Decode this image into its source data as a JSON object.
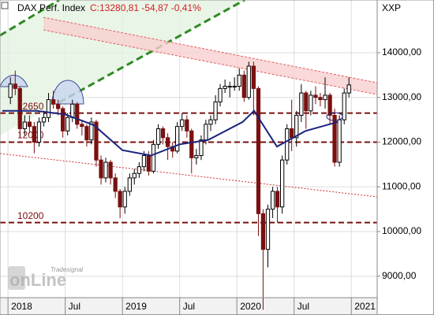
{
  "chart_data": {
    "type": "candlestick",
    "title": "DAX Perf. Index",
    "quote": "C:13280,81 -54,87 -0,41%",
    "axis_title": "XXP",
    "watermark": "Tradesignal",
    "watermark_brand": "onLine",
    "x": [
      2018.021,
      2018.063,
      2018.104,
      2018.146,
      2018.188,
      2018.229,
      2018.271,
      2018.313,
      2018.354,
      2018.396,
      2018.438,
      2018.479,
      2018.521,
      2018.563,
      2018.604,
      2018.646,
      2018.688,
      2018.729,
      2018.771,
      2018.813,
      2018.854,
      2018.896,
      2018.938,
      2018.979,
      2019.021,
      2019.063,
      2019.104,
      2019.146,
      2019.188,
      2019.229,
      2019.271,
      2019.313,
      2019.354,
      2019.396,
      2019.438,
      2019.479,
      2019.521,
      2019.563,
      2019.604,
      2019.646,
      2019.688,
      2019.729,
      2019.771,
      2019.813,
      2019.854,
      2019.896,
      2019.938,
      2019.979,
      2020.021,
      2020.063,
      2020.104,
      2020.146,
      2020.188,
      2020.229,
      2020.271,
      2020.313,
      2020.354,
      2020.396,
      2020.438,
      2020.479,
      2020.521,
      2020.563,
      2020.604,
      2020.646,
      2020.688,
      2020.729,
      2020.771,
      2020.813,
      2020.854,
      2020.896,
      2020.938,
      2020.979
    ],
    "open": [
      13000,
      13300,
      13200,
      12300,
      12450,
      12350,
      12000,
      12450,
      12550,
      12950,
      12850,
      12750,
      12250,
      12550,
      12850,
      12400,
      12350,
      12050,
      12450,
      11600,
      11200,
      11550,
      11200,
      10900,
      10550,
      10900,
      11200,
      11300,
      11450,
      11700,
      11350,
      11950,
      12300,
      12100,
      11900,
      11800,
      12350,
      12500,
      12250,
      11650,
      11700,
      12050,
      12400,
      12500,
      12900,
      13200,
      13250,
      13250,
      13250,
      13500,
      13000,
      13700,
      13200,
      10400,
      9600,
      10500,
      10900,
      10550,
      11600,
      12300,
      12100,
      12600,
      13100,
      12700,
      13050,
      13000,
      12950,
      13050,
      12600,
      11550,
      12500,
      13100
    ],
    "high": [
      13450,
      13600,
      13250,
      12600,
      12600,
      12450,
      12550,
      12700,
      13100,
      13150,
      12950,
      12800,
      12650,
      12950,
      12900,
      12500,
      12400,
      12550,
      12500,
      11700,
      11650,
      11600,
      11300,
      10950,
      11000,
      11300,
      11400,
      11550,
      11800,
      11800,
      12050,
      12400,
      12350,
      12200,
      12000,
      12450,
      12650,
      12600,
      12300,
      11850,
      12150,
      12500,
      12600,
      13050,
      13300,
      13400,
      13350,
      13450,
      13650,
      13600,
      13800,
      13800,
      13250,
      10500,
      10600,
      11000,
      11000,
      11700,
      12400,
      12950,
      12700,
      13300,
      13150,
      13150,
      13250,
      13100,
      13450,
      13100,
      12750,
      12600,
      13200,
      13450
    ],
    "low": [
      12850,
      13050,
      12100,
      12150,
      12200,
      11750,
      11900,
      12350,
      12450,
      12750,
      12600,
      12100,
      12150,
      12450,
      12300,
      12150,
      11900,
      11950,
      11450,
      11050,
      11100,
      11050,
      10750,
      10300,
      10400,
      10800,
      11050,
      11200,
      11350,
      11250,
      11300,
      11850,
      11950,
      11600,
      11650,
      11750,
      12250,
      12100,
      11300,
      11500,
      11600,
      11950,
      12250,
      12400,
      12800,
      13100,
      13000,
      13150,
      13150,
      12900,
      12950,
      12600,
      9900,
      8250,
      9200,
      10300,
      10200,
      10400,
      11500,
      11800,
      11900,
      12450,
      12300,
      12600,
      12850,
      12800,
      12750,
      12400,
      11450,
      11450,
      12400,
      13000
    ],
    "close": [
      13300,
      13200,
      12300,
      12450,
      12350,
      12000,
      12450,
      12550,
      12950,
      12850,
      12750,
      12250,
      12550,
      12850,
      12400,
      12350,
      12050,
      12450,
      11600,
      11200,
      11550,
      11200,
      10900,
      10550,
      10900,
      11200,
      11300,
      11450,
      11700,
      11350,
      11950,
      12300,
      12100,
      11900,
      11800,
      12350,
      12500,
      12250,
      11650,
      11700,
      12050,
      12400,
      12500,
      12900,
      13200,
      13250,
      13250,
      13250,
      13500,
      13000,
      13700,
      13200,
      10400,
      9600,
      10500,
      10900,
      10550,
      11600,
      12300,
      12100,
      12600,
      13100,
      12700,
      13050,
      13000,
      12950,
      13050,
      12600,
      11550,
      12500,
      13100,
      13280
    ],
    "up_color": "#000000",
    "down_color": "#7a1010",
    "series": [
      {
        "color": "#1a237e",
        "x": [
          2017.95,
          2018.25,
          2018.5,
          2018.75,
          2019.0,
          2019.25,
          2019.5,
          2019.75,
          2020.05,
          2020.15,
          2020.35,
          2020.6,
          2020.88
        ],
        "values": [
          12700,
          12700,
          12620,
          12380,
          11820,
          11700,
          11950,
          12050,
          12450,
          12700,
          11900,
          12250,
          12450
        ]
      }
    ],
    "levels": [
      12650,
      12000,
      10200
    ],
    "level_color": "#7a1010",
    "xlim": [
      2017.93,
      2021.226
    ],
    "ylim": [
      8520,
      15180
    ],
    "xticks": [
      {
        "value": 2018,
        "label": "2018"
      },
      {
        "value": 2018.5,
        "label": "Jul"
      },
      {
        "value": 2019,
        "label": "2019"
      },
      {
        "value": 2019.5,
        "label": "Jul"
      },
      {
        "value": 2020,
        "label": "2020"
      },
      {
        "value": 2020.5,
        "label": "Jul"
      },
      {
        "value": 2021,
        "label": "2021"
      }
    ],
    "yticks": [
      {
        "value": 9000,
        "label": "9000,00"
      },
      {
        "value": 10000,
        "label": "10000,00"
      },
      {
        "value": 11000,
        "label": "11000,00"
      },
      {
        "value": 12000,
        "label": "12000,00"
      },
      {
        "value": 13000,
        "label": "13000,00"
      },
      {
        "value": 14000,
        "label": "14000,00"
      }
    ],
    "grid": true
  }
}
